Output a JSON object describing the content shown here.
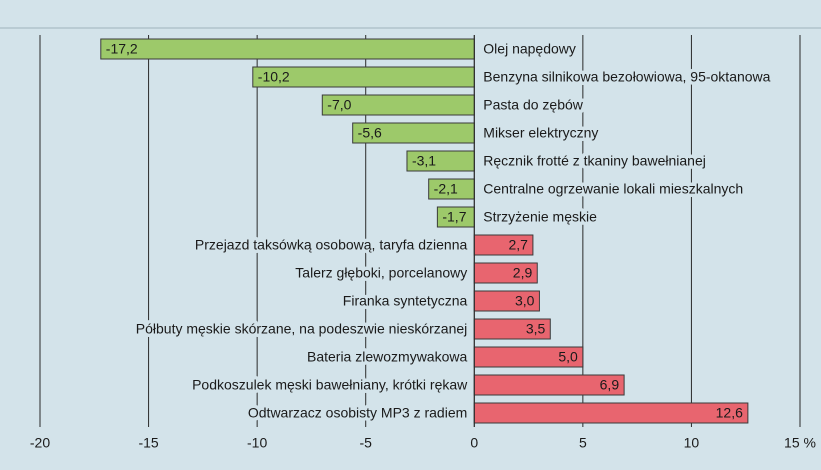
{
  "chart_data": {
    "type": "bar",
    "orientation": "horizontal",
    "categories": [
      "Olej napędowy",
      "Benzyna silnikowa bezołowiowa, 95-oktanowa",
      "Pasta do zębów",
      "Mikser elektryczny",
      "Ręcznik frotté z tkaniny bawełnianej",
      "Centralne ogrzewanie lokali mieszkalnych",
      "Strzyżenie męskie",
      "Przejazd taksówką osobową, taryfa dzienna",
      "Talerz głęboki, porcelanowy",
      "Firanka syntetyczna",
      "Półbuty męskie skórzane, na podeszwie nieskórzanej",
      "Bateria zlewozmywakowa",
      "Podkoszulek męski bawełniany, krótki rękaw",
      "Odtwarzacz osobisty MP3 z radiem"
    ],
    "values": [
      -17.2,
      -10.2,
      -7.0,
      -5.6,
      -3.1,
      -2.1,
      -1.7,
      2.7,
      2.9,
      3.0,
      3.5,
      5.0,
      6.9,
      12.6
    ],
    "value_labels": [
      "-17,2",
      "-10,2",
      "-7,0",
      "-5,6",
      "-3,1",
      "-2,1",
      "-1,7",
      "2,7",
      "2,9",
      "3,0",
      "3,5",
      "5,0",
      "6,9",
      "12,6"
    ],
    "negative_color": "#9dc96a",
    "positive_color": "#e8656f",
    "xlim": [
      -20,
      15
    ],
    "xticks": [
      -20,
      -15,
      -10,
      -5,
      0,
      5,
      10,
      {
        "value": 15,
        "label": "15 %"
      }
    ],
    "grid": true
  }
}
